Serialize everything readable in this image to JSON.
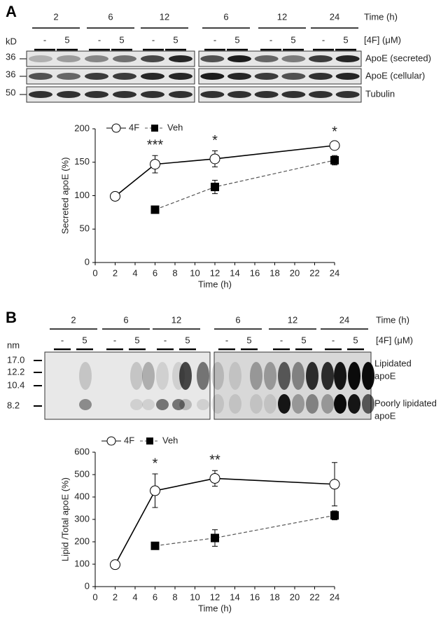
{
  "panel_a": {
    "label": "A",
    "time_label": "Time (h)",
    "dose_label": "[4F] (μM)",
    "unit": "kD",
    "times": [
      "2",
      "6",
      "12",
      "6",
      "12",
      "24"
    ],
    "doses": [
      "-",
      "5",
      "-",
      "5",
      "-",
      "5",
      "-",
      "5",
      "-",
      "5",
      "-",
      "5"
    ],
    "markers": [
      "36",
      "36",
      "50"
    ],
    "rows": [
      "ApoE (secreted)",
      "ApoE (cellular)",
      "Tubulin"
    ]
  },
  "panel_b": {
    "label": "B",
    "time_label": "Time (h)",
    "dose_label": "[4F] (μM)",
    "unit": "nm",
    "times": [
      "2",
      "6",
      "12",
      "6",
      "12",
      "24"
    ],
    "doses": [
      "-",
      "5",
      "-",
      "5",
      "-",
      "5",
      "-",
      "5",
      "-",
      "5",
      "-",
      "5"
    ],
    "markers": [
      "17.0",
      "12.2",
      "10.4",
      "8.2"
    ],
    "bands": [
      [
        "Lipidated",
        "apoE"
      ],
      [
        "Poorly lipidated",
        "apoE"
      ]
    ]
  },
  "chart_data": [
    {
      "type": "line",
      "x_label": "Time (h)",
      "y_label": "Secreted apoE (%)",
      "xlim": [
        0,
        24
      ],
      "xticks": [
        0,
        2,
        4,
        6,
        8,
        10,
        12,
        14,
        16,
        18,
        20,
        22,
        24
      ],
      "ylim": [
        0,
        200
      ],
      "yticks": [
        0,
        50,
        100,
        150,
        200
      ],
      "series": [
        {
          "name": "4F",
          "color": "#000000",
          "x": [
            2,
            6,
            12,
            24
          ],
          "values": [
            99,
            147,
            155,
            175
          ],
          "errors": [
            null,
            13,
            12,
            5
          ]
        },
        {
          "name": "Veh",
          "color": "#555555",
          "x": [
            6,
            12,
            24
          ],
          "values": [
            79,
            113,
            153
          ],
          "errors": [
            null,
            10,
            7
          ]
        }
      ],
      "annotations": [
        {
          "text": "***",
          "x": 6
        },
        {
          "text": "*",
          "x": 12
        },
        {
          "text": "*",
          "x": 24
        }
      ]
    },
    {
      "type": "line",
      "x_label": "Time (h)",
      "y_label": "Lipid /Total apoE (%)",
      "xlim": [
        0,
        24
      ],
      "xticks": [
        0,
        2,
        4,
        6,
        8,
        10,
        12,
        14,
        16,
        18,
        20,
        22,
        24
      ],
      "ylim": [
        0,
        600
      ],
      "yticks": [
        0,
        100,
        200,
        300,
        400,
        500,
        600
      ],
      "series": [
        {
          "name": "4F",
          "color": "#000000",
          "x": [
            2,
            6,
            12,
            24
          ],
          "values": [
            98,
            428,
            483,
            457
          ],
          "errors": [
            null,
            75,
            35,
            97
          ]
        },
        {
          "name": "Veh",
          "color": "#555555",
          "x": [
            6,
            12,
            24
          ],
          "values": [
            182,
            217,
            318
          ],
          "errors": [
            null,
            37,
            20
          ]
        }
      ],
      "annotations": [
        {
          "text": "*",
          "x": 6
        },
        {
          "text": "**",
          "x": 12
        }
      ]
    }
  ]
}
